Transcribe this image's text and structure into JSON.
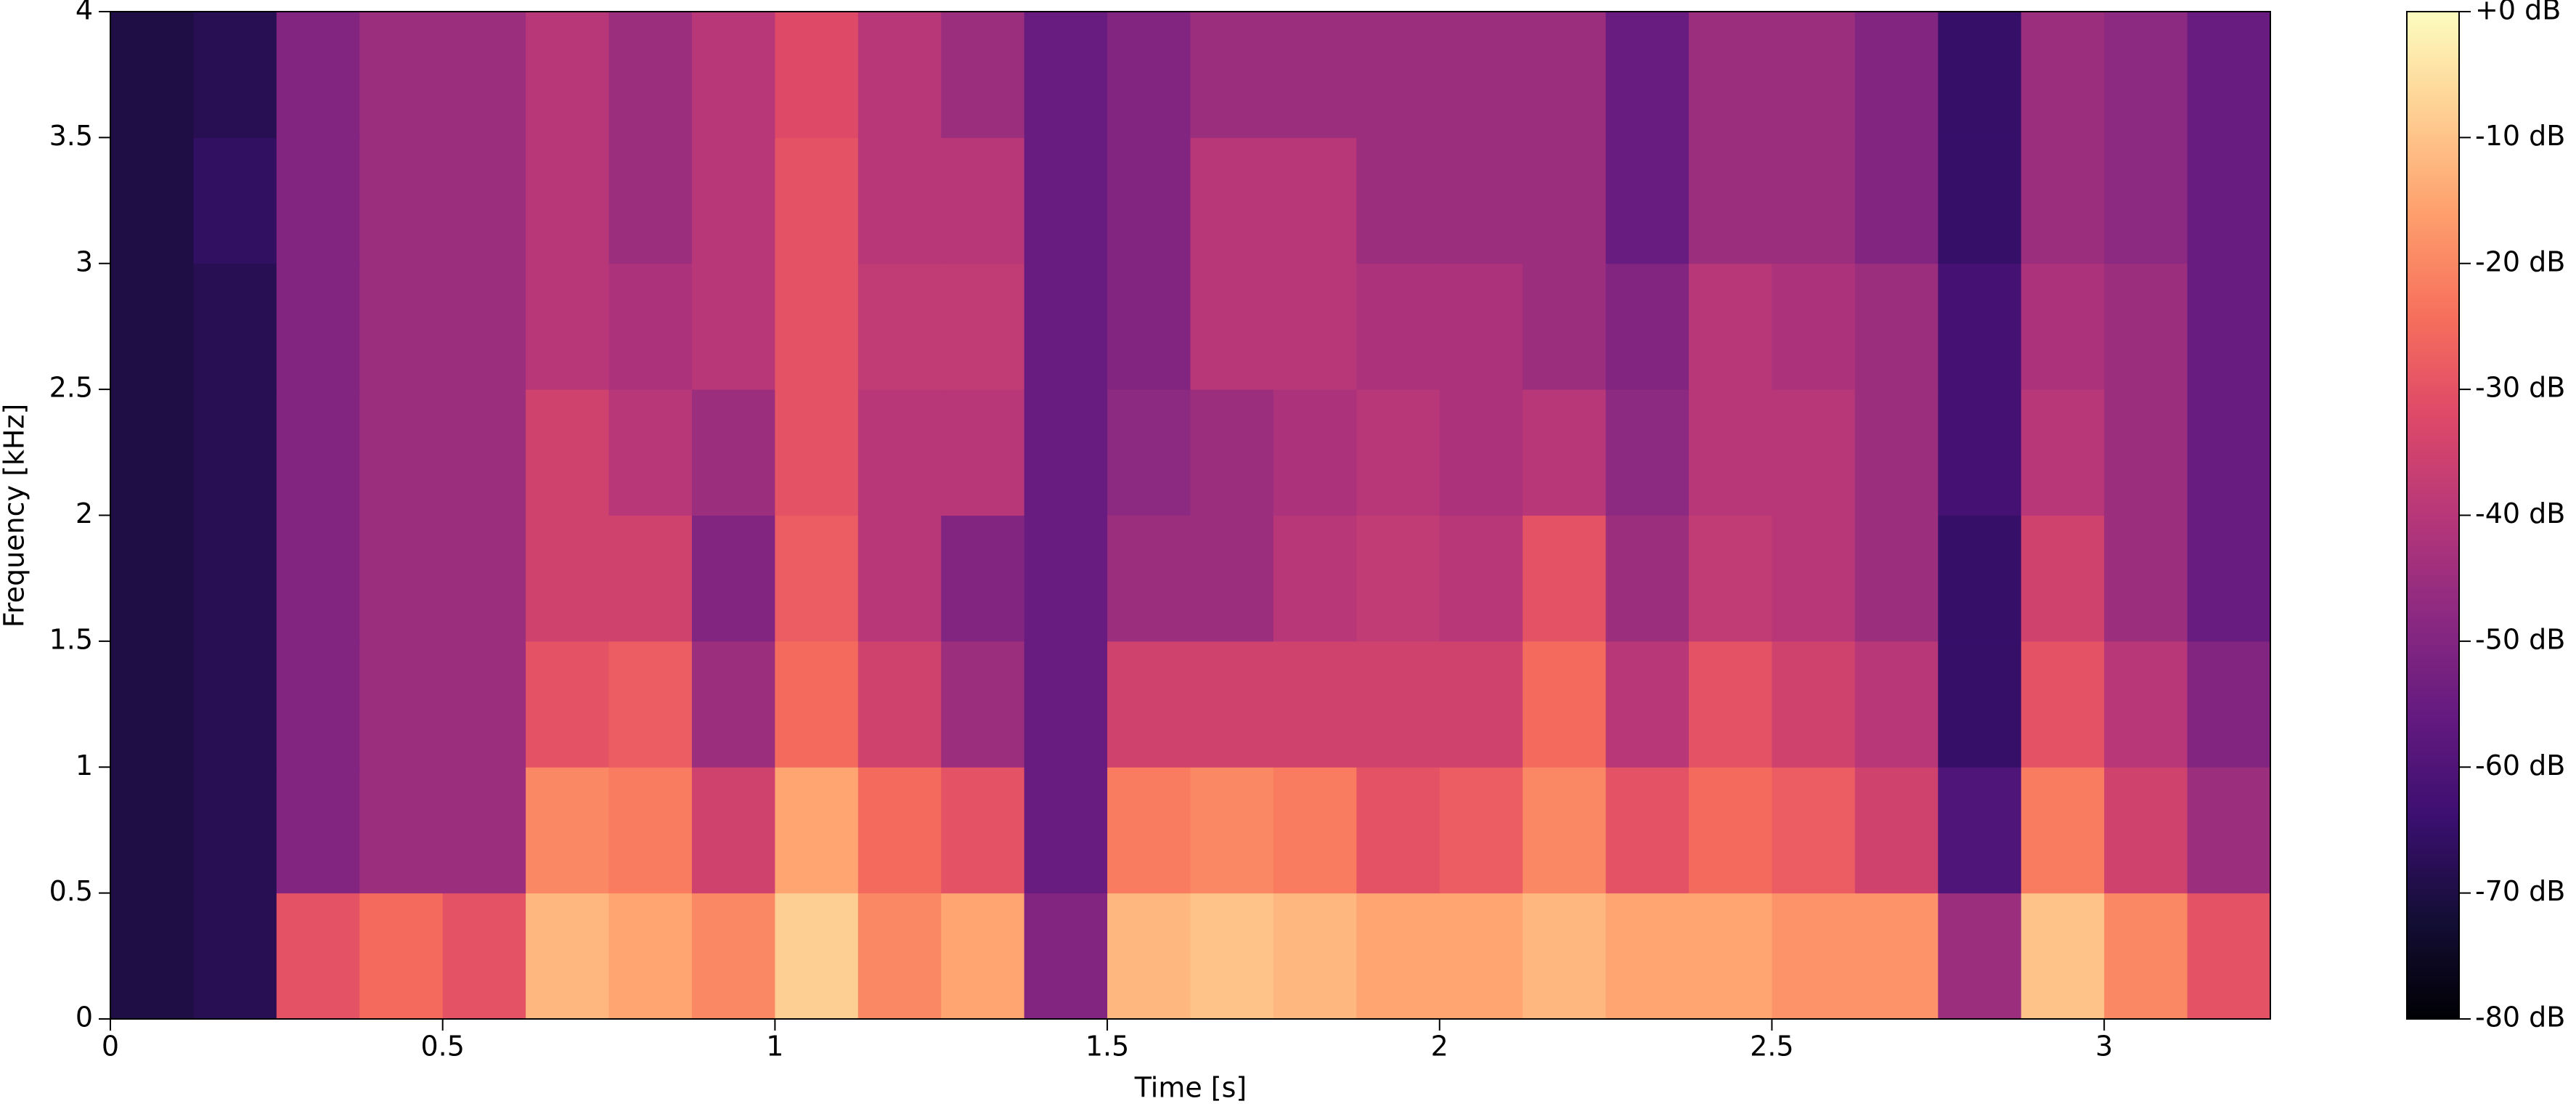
{
  "chart_data": {
    "type": "spectrogram",
    "xlabel": "Time [s]",
    "ylabel": "Frequency [kHz]",
    "xlim": [
      0,
      3.25
    ],
    "xticks": [
      0,
      0.5,
      1,
      1.5,
      2,
      2.5,
      3
    ],
    "ylim": [
      0,
      4
    ],
    "yticks": [
      0,
      0.5,
      1,
      1.5,
      2,
      2.5,
      3,
      3.5,
      4
    ],
    "xbins": [
      0,
      0.125,
      0.25,
      0.375,
      0.5,
      0.625,
      0.75,
      0.875,
      1,
      1.125,
      1.25,
      1.375,
      1.5,
      1.625,
      1.75,
      1.875,
      2,
      2.125,
      2.25,
      2.375,
      2.5,
      2.625,
      2.75,
      2.875,
      3,
      3.125,
      3.25
    ],
    "ybins": [
      0,
      0.5,
      1,
      1.5,
      2,
      2.5,
      3,
      3.5,
      4
    ],
    "z": [
      [
        -70,
        -68,
        -30,
        -25,
        -30,
        -12,
        -15,
        -20,
        -8,
        -20,
        -15,
        -50,
        -12,
        -10,
        -12,
        -15,
        -15,
        -12,
        -15,
        -15,
        -18,
        -18,
        -45,
        -10,
        -20,
        -30
      ],
      [
        -70,
        -68,
        -50,
        -45,
        -45,
        -20,
        -22,
        -35,
        -15,
        -25,
        -30,
        -55,
        -22,
        -20,
        -22,
        -30,
        -28,
        -20,
        -30,
        -25,
        -28,
        -35,
        -60,
        -22,
        -35,
        -45
      ],
      [
        -70,
        -68,
        -50,
        -45,
        -45,
        -30,
        -28,
        -45,
        -25,
        -35,
        -45,
        -55,
        -35,
        -35,
        -35,
        -35,
        -35,
        -25,
        -40,
        -30,
        -35,
        -40,
        -65,
        -30,
        -40,
        -50
      ],
      [
        -70,
        -68,
        -50,
        -45,
        -45,
        -35,
        -35,
        -50,
        -28,
        -40,
        -50,
        -55,
        -45,
        -45,
        -40,
        -38,
        -40,
        -30,
        -45,
        -38,
        -40,
        -45,
        -65,
        -35,
        -45,
        -55
      ],
      [
        -70,
        -68,
        -50,
        -45,
        -45,
        -35,
        -40,
        -45,
        -30,
        -40,
        -40,
        -55,
        -48,
        -45,
        -42,
        -40,
        -42,
        -40,
        -48,
        -40,
        -40,
        -45,
        -62,
        -40,
        -45,
        -55
      ],
      [
        -70,
        -68,
        -50,
        -45,
        -45,
        -40,
        -42,
        -40,
        -30,
        -38,
        -38,
        -55,
        -50,
        -40,
        -40,
        -42,
        -42,
        -45,
        -50,
        -40,
        -42,
        -45,
        -62,
        -42,
        -45,
        -55
      ],
      [
        -70,
        -66,
        -50,
        -45,
        -45,
        -40,
        -45,
        -40,
        -30,
        -40,
        -40,
        -55,
        -50,
        -40,
        -40,
        -45,
        -45,
        -45,
        -55,
        -45,
        -45,
        -50,
        -65,
        -45,
        -48,
        -55
      ],
      [
        -70,
        -68,
        -50,
        -45,
        -45,
        -40,
        -45,
        -40,
        -32,
        -40,
        -45,
        -55,
        -50,
        -45,
        -45,
        -45,
        -45,
        -45,
        -55,
        -45,
        -45,
        -50,
        -65,
        -45,
        -48,
        -55
      ]
    ],
    "colormap": "magma",
    "clim": [
      -80,
      0
    ],
    "cticks": [
      {
        "value": 0,
        "label": "+0 dB"
      },
      {
        "value": -10,
        "label": "-10 dB"
      },
      {
        "value": -20,
        "label": "-20 dB"
      },
      {
        "value": -30,
        "label": "-30 dB"
      },
      {
        "value": -40,
        "label": "-40 dB"
      },
      {
        "value": -50,
        "label": "-50 dB"
      },
      {
        "value": -60,
        "label": "-60 dB"
      },
      {
        "value": -70,
        "label": "-70 dB"
      },
      {
        "value": -80,
        "label": "-80 dB"
      }
    ]
  }
}
